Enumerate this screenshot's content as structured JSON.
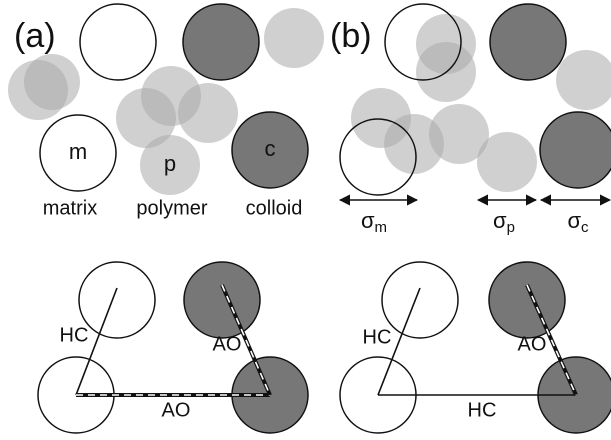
{
  "panel_a": {
    "label": "(a)",
    "species": [
      {
        "symbol": "m",
        "name": "matrix"
      },
      {
        "symbol": "p",
        "name": "polymer"
      },
      {
        "symbol": "c",
        "name": "colloid"
      }
    ],
    "interactions": [
      "HC",
      "AO",
      "AO"
    ]
  },
  "panel_b": {
    "label": "(b)",
    "sizes": [
      {
        "symbol": "σ",
        "subscript": "m"
      },
      {
        "symbol": "σ",
        "subscript": "p"
      },
      {
        "symbol": "σ",
        "subscript": "c"
      }
    ],
    "interactions": [
      "HC",
      "AO",
      "HC"
    ]
  }
}
